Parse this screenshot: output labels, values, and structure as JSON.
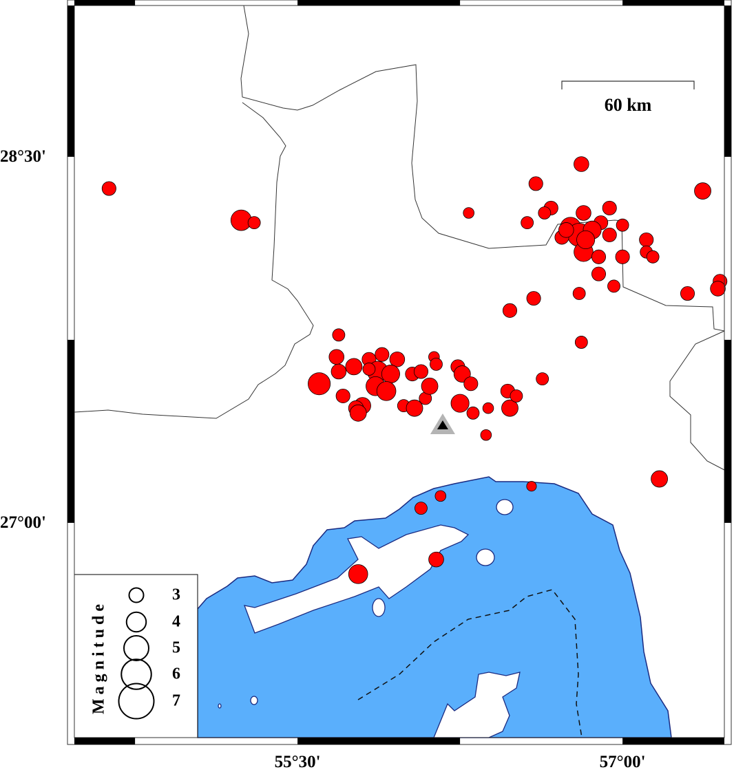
{
  "map": {
    "lon_range": [
      54.47,
      57.47
    ],
    "lat_range": [
      26.12,
      29.12
    ],
    "frame_tick_interval_deg": 0.75,
    "colors": {
      "sea": "#5aaffc",
      "coastline": "#1a2a80",
      "land": "#ffffff",
      "event": "#ff0000",
      "border": "#333333",
      "station": "#000000",
      "station_halo": "#b4b4b4"
    },
    "x_ticks": [
      {
        "value": 55.5,
        "label": "55°30'"
      },
      {
        "value": 57.0,
        "label": "57°00'"
      }
    ],
    "y_ticks": [
      {
        "value": 28.5,
        "label": "28°30'"
      },
      {
        "value": 27.0,
        "label": "27°00'"
      }
    ],
    "scale_bar": {
      "label": "60 km",
      "length_km": 60
    },
    "station": {
      "lon": 56.17,
      "lat": 27.4,
      "icon": "triangle-icon"
    }
  },
  "legend": {
    "title": "Magnitude",
    "entries": [
      {
        "mag": 3,
        "label": "3"
      },
      {
        "mag": 4,
        "label": "4"
      },
      {
        "mag": 5,
        "label": "5"
      },
      {
        "mag": 6,
        "label": "6"
      },
      {
        "mag": 7,
        "label": "7"
      }
    ]
  },
  "events": [
    {
      "lon": 54.63,
      "lat": 28.37,
      "mag": 2.9
    },
    {
      "lon": 55.24,
      "lat": 28.24,
      "mag": 4.2
    },
    {
      "lon": 55.3,
      "lat": 28.23,
      "mag": 2.6
    },
    {
      "lon": 56.81,
      "lat": 28.47,
      "mag": 3.1
    },
    {
      "lon": 56.6,
      "lat": 28.39,
      "mag": 2.9
    },
    {
      "lon": 57.37,
      "lat": 28.36,
      "mag": 3.4
    },
    {
      "lon": 56.29,
      "lat": 28.27,
      "mag": 2.3
    },
    {
      "lon": 56.67,
      "lat": 28.29,
      "mag": 2.9
    },
    {
      "lon": 56.64,
      "lat": 28.27,
      "mag": 2.6
    },
    {
      "lon": 56.56,
      "lat": 28.23,
      "mag": 2.6
    },
    {
      "lon": 56.82,
      "lat": 28.27,
      "mag": 3.1
    },
    {
      "lon": 56.94,
      "lat": 28.29,
      "mag": 2.9
    },
    {
      "lon": 57.0,
      "lat": 28.22,
      "mag": 2.6
    },
    {
      "lon": 56.9,
      "lat": 28.23,
      "mag": 2.9
    },
    {
      "lon": 56.76,
      "lat": 28.21,
      "mag": 4.2
    },
    {
      "lon": 56.8,
      "lat": 28.18,
      "mag": 4.7
    },
    {
      "lon": 56.82,
      "lat": 28.11,
      "mag": 3.9
    },
    {
      "lon": 56.86,
      "lat": 28.2,
      "mag": 3.7
    },
    {
      "lon": 56.94,
      "lat": 28.18,
      "mag": 2.9
    },
    {
      "lon": 56.72,
      "lat": 28.17,
      "mag": 2.9
    },
    {
      "lon": 56.89,
      "lat": 28.09,
      "mag": 2.9
    },
    {
      "lon": 57.0,
      "lat": 28.09,
      "mag": 2.9
    },
    {
      "lon": 57.11,
      "lat": 28.16,
      "mag": 2.9
    },
    {
      "lon": 57.11,
      "lat": 28.11,
      "mag": 2.6
    },
    {
      "lon": 57.14,
      "lat": 28.09,
      "mag": 2.6
    },
    {
      "lon": 56.89,
      "lat": 28.02,
      "mag": 2.9
    },
    {
      "lon": 56.96,
      "lat": 27.97,
      "mag": 2.6
    },
    {
      "lon": 56.8,
      "lat": 27.94,
      "mag": 2.6
    },
    {
      "lon": 56.59,
      "lat": 27.92,
      "mag": 2.9
    },
    {
      "lon": 56.48,
      "lat": 27.87,
      "mag": 2.9
    },
    {
      "lon": 57.3,
      "lat": 27.94,
      "mag": 2.9
    },
    {
      "lon": 57.45,
      "lat": 27.99,
      "mag": 2.9
    },
    {
      "lon": 57.44,
      "lat": 27.96,
      "mag": 3.1
    },
    {
      "lon": 56.81,
      "lat": 27.74,
      "mag": 2.6
    },
    {
      "lon": 56.74,
      "lat": 28.2,
      "mag": 3.1
    },
    {
      "lon": 56.83,
      "lat": 28.16,
      "mag": 3.7
    },
    {
      "lon": 55.69,
      "lat": 27.77,
      "mag": 2.6
    },
    {
      "lon": 55.68,
      "lat": 27.68,
      "mag": 3.1
    },
    {
      "lon": 55.69,
      "lat": 27.62,
      "mag": 3.1
    },
    {
      "lon": 55.6,
      "lat": 27.57,
      "mag": 4.5
    },
    {
      "lon": 55.76,
      "lat": 27.64,
      "mag": 3.4
    },
    {
      "lon": 55.71,
      "lat": 27.52,
      "mag": 2.9
    },
    {
      "lon": 55.83,
      "lat": 27.67,
      "mag": 2.9
    },
    {
      "lon": 55.89,
      "lat": 27.69,
      "mag": 2.9
    },
    {
      "lon": 55.96,
      "lat": 27.67,
      "mag": 3.1
    },
    {
      "lon": 55.87,
      "lat": 27.62,
      "mag": 4.2
    },
    {
      "lon": 55.83,
      "lat": 27.63,
      "mag": 2.6
    },
    {
      "lon": 55.93,
      "lat": 27.61,
      "mag": 3.7
    },
    {
      "lon": 55.86,
      "lat": 27.56,
      "mag": 3.9
    },
    {
      "lon": 55.91,
      "lat": 27.54,
      "mag": 3.9
    },
    {
      "lon": 55.8,
      "lat": 27.48,
      "mag": 3.4
    },
    {
      "lon": 55.77,
      "lat": 27.47,
      "mag": 3.1
    },
    {
      "lon": 55.78,
      "lat": 27.45,
      "mag": 3.4
    },
    {
      "lon": 55.99,
      "lat": 27.48,
      "mag": 2.6
    },
    {
      "lon": 56.04,
      "lat": 27.47,
      "mag": 3.4
    },
    {
      "lon": 56.09,
      "lat": 27.51,
      "mag": 2.6
    },
    {
      "lon": 56.03,
      "lat": 27.61,
      "mag": 2.9
    },
    {
      "lon": 56.07,
      "lat": 27.62,
      "mag": 2.9
    },
    {
      "lon": 56.11,
      "lat": 27.56,
      "mag": 3.4
    },
    {
      "lon": 56.13,
      "lat": 27.68,
      "mag": 2.3
    },
    {
      "lon": 56.14,
      "lat": 27.65,
      "mag": 2.6
    },
    {
      "lon": 56.24,
      "lat": 27.64,
      "mag": 2.9
    },
    {
      "lon": 56.26,
      "lat": 27.61,
      "mag": 3.4
    },
    {
      "lon": 56.3,
      "lat": 27.57,
      "mag": 2.9
    },
    {
      "lon": 56.25,
      "lat": 27.49,
      "mag": 3.7
    },
    {
      "lon": 56.31,
      "lat": 27.45,
      "mag": 2.6
    },
    {
      "lon": 56.38,
      "lat": 27.47,
      "mag": 2.3
    },
    {
      "lon": 56.37,
      "lat": 27.36,
      "mag": 2.3
    },
    {
      "lon": 56.48,
      "lat": 27.47,
      "mag": 3.4
    },
    {
      "lon": 56.47,
      "lat": 27.54,
      "mag": 2.9
    },
    {
      "lon": 56.51,
      "lat": 27.52,
      "mag": 2.6
    },
    {
      "lon": 56.63,
      "lat": 27.59,
      "mag": 2.6
    },
    {
      "lon": 56.16,
      "lat": 27.11,
      "mag": 2.3
    },
    {
      "lon": 56.07,
      "lat": 27.06,
      "mag": 2.6
    },
    {
      "lon": 56.58,
      "lat": 27.15,
      "mag": 2.1
    },
    {
      "lon": 57.17,
      "lat": 27.18,
      "mag": 3.4
    },
    {
      "lon": 56.14,
      "lat": 26.85,
      "mag": 3.1
    },
    {
      "lon": 55.78,
      "lat": 26.79,
      "mag": 3.9
    }
  ]
}
